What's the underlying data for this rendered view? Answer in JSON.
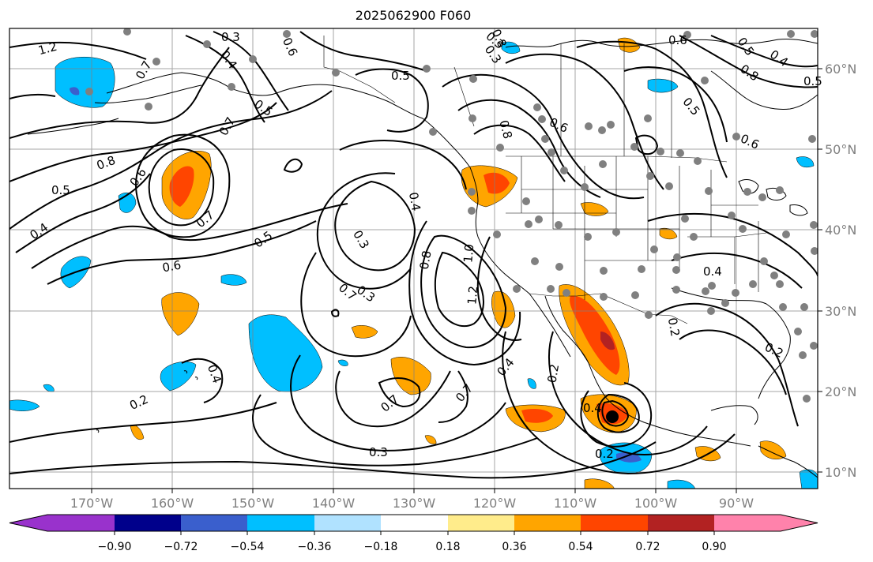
{
  "title": "2025062900 F060",
  "map": {
    "projection": "PlateCarree",
    "extent_lon": [
      -180,
      -80
    ],
    "extent_lat": [
      7,
      65
    ],
    "grid": true,
    "lat_labels": [
      "60°N",
      "50°N",
      "40°N",
      "30°N",
      "20°N",
      "10°N"
    ],
    "lon_labels": [
      "170°W",
      "160°W",
      "150°W",
      "140°W",
      "130°W",
      "120°W",
      "110°W",
      "100°W",
      "90°W"
    ],
    "contour_labels": [
      "1.2",
      "0.3",
      "0.6",
      "0.4",
      "0.7",
      "0.5",
      "0.5",
      "0.3",
      "0.8",
      "0.6",
      "0.5",
      "0.8",
      "0.4",
      "0.5",
      "0.6",
      "0.5",
      "0.7",
      "0.8",
      "0.6",
      "0.8",
      "0.3",
      "0.4",
      "0.6",
      "0.5",
      "0.7",
      "0.5",
      "0.6",
      "0.3",
      "0.4",
      "0.8",
      "1.0",
      "1.2",
      "0.7",
      "0.4",
      "0.7",
      "0.7",
      "0.2",
      "0.4",
      "0.3",
      "0.3",
      "0.2",
      "0.2",
      "0.4",
      "0.2",
      "0.2",
      "0.4"
    ],
    "fill_colors": {
      "pos_036_054": "#ffa500",
      "pos_054_072": "#ff4500",
      "pos_072_090": "#b22222",
      "neg_036_054": "#00bfff",
      "neg_054_072": "#3a5fcd",
      "neg_072_090": "#00008b",
      "dot": "#808080"
    }
  },
  "colorbar": {
    "ticks": [
      "−0.90",
      "−0.72",
      "−0.54",
      "−0.36",
      "−0.18",
      "0.18",
      "0.36",
      "0.54",
      "0.72",
      "0.90"
    ],
    "colors": [
      "#9932cc",
      "#00008b",
      "#3a5fcd",
      "#00bfff",
      "#b0e2ff",
      "#ffffff",
      "#ffec8b",
      "#ffa500",
      "#ff4500",
      "#b22222",
      "#ff82ab"
    ]
  }
}
